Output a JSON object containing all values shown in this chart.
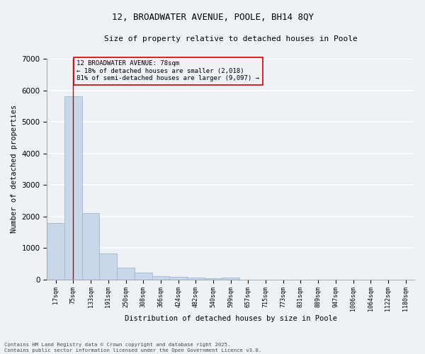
{
  "title": "12, BROADWATER AVENUE, POOLE, BH14 8QY",
  "subtitle": "Size of property relative to detached houses in Poole",
  "xlabel": "Distribution of detached houses by size in Poole",
  "ylabel": "Number of detached properties",
  "categories": [
    "17sqm",
    "75sqm",
    "133sqm",
    "191sqm",
    "250sqm",
    "308sqm",
    "366sqm",
    "424sqm",
    "482sqm",
    "540sqm",
    "599sqm",
    "657sqm",
    "715sqm",
    "773sqm",
    "831sqm",
    "889sqm",
    "947sqm",
    "1006sqm",
    "1064sqm",
    "1122sqm",
    "1180sqm"
  ],
  "values": [
    1780,
    5820,
    2100,
    820,
    380,
    220,
    110,
    80,
    55,
    40,
    50,
    0,
    0,
    0,
    0,
    0,
    0,
    0,
    0,
    0,
    0
  ],
  "bar_color": "#c8d8ea",
  "bar_edge_color": "#a0b8cc",
  "property_line_x": 1,
  "property_line_color": "#cc0000",
  "annotation_box_color": "#cc0000",
  "annotation_text_line1": "12 BROADWATER AVENUE: 78sqm",
  "annotation_text_line2": "← 18% of detached houses are smaller (2,018)",
  "annotation_text_line3": "81% of semi-detached houses are larger (9,097) →",
  "ylim": [
    0,
    7000
  ],
  "yticks": [
    0,
    1000,
    2000,
    3000,
    4000,
    5000,
    6000,
    7000
  ],
  "bg_color": "#eef2f7",
  "grid_color": "#ffffff",
  "footer_line1": "Contains HM Land Registry data © Crown copyright and database right 2025.",
  "footer_line2": "Contains public sector information licensed under the Open Government Licence v3.0."
}
